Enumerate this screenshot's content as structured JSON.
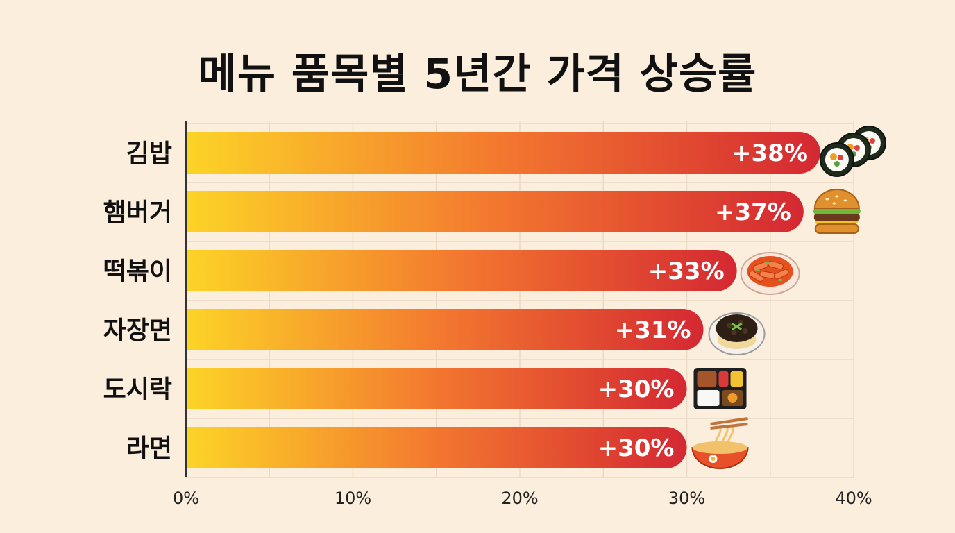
{
  "chart_data": {
    "type": "bar",
    "orientation": "horizontal",
    "title": "메뉴 품목별 5년간 가격 상승률",
    "xlabel": "",
    "ylabel": "",
    "categories": [
      "김밥",
      "햄버거",
      "떡볶이",
      "자장면",
      "도시락",
      "라면"
    ],
    "values": [
      38,
      37,
      33,
      31,
      30,
      30
    ],
    "value_labels": [
      "+38%",
      "+37%",
      "+33%",
      "+31%",
      "+30%",
      "+30%"
    ],
    "icons": [
      "gimbap-icon",
      "hamburger-icon",
      "tteokbokki-icon",
      "jajangmyeon-icon",
      "dosirak-icon",
      "ramen-icon"
    ],
    "xlim": [
      0,
      40
    ],
    "xticks": [
      0,
      10,
      20,
      30,
      40
    ],
    "xtick_labels": [
      "0%",
      "10%",
      "20%",
      "30%",
      "40%"
    ],
    "grid": true,
    "legend": "none",
    "colors": {
      "bar_start": "#fcd427",
      "bar_mid": "#f3772f",
      "bar_end": "#d42832",
      "background": "#fbeedd"
    }
  }
}
